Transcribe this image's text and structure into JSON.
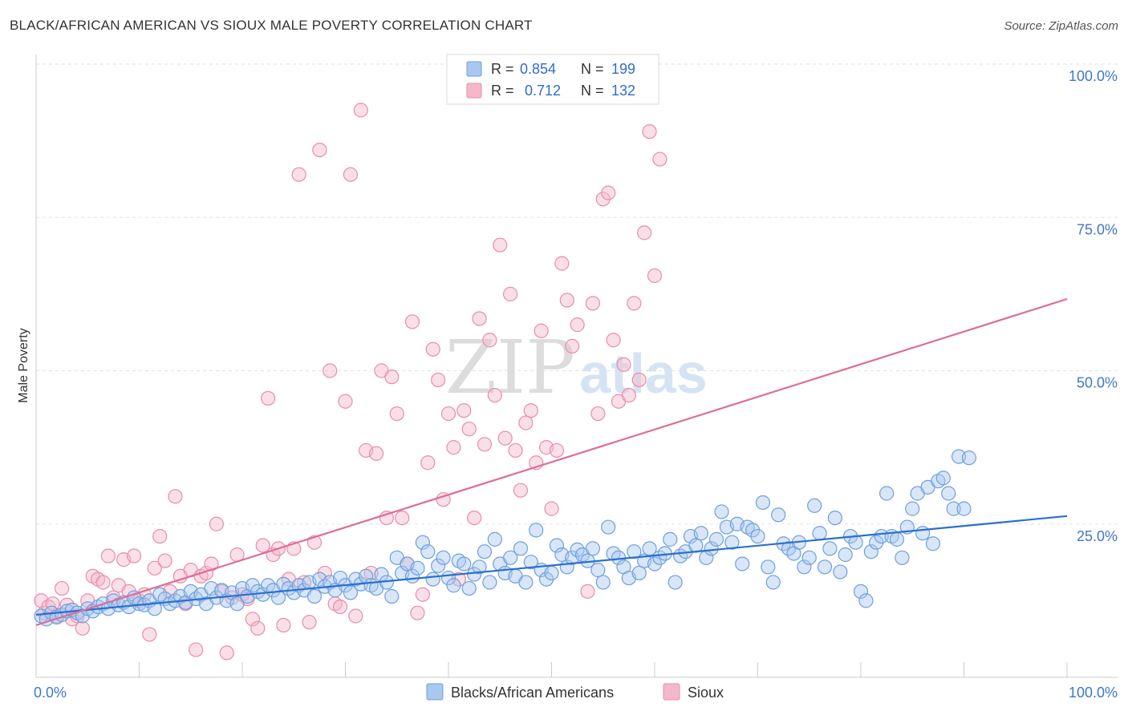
{
  "header": {
    "title": "BLACK/AFRICAN AMERICAN VS SIOUX MALE POVERTY CORRELATION CHART",
    "source": "Source: ZipAtlas.com"
  },
  "watermark": {
    "zip": "ZIP",
    "atlas": "atlas"
  },
  "colors": {
    "blue_fill": "#a9c8ef",
    "blue_stroke": "#6e9fdc",
    "blue_line": "#2a6fcf",
    "pink_fill": "#f5b8cb",
    "pink_stroke": "#e98daa",
    "pink_line": "#e06c95",
    "axis_label": "#3f78c8",
    "grid": "#e2e2e2"
  },
  "legend": {
    "rows": [
      {
        "r_label": "R =",
        "r_value": "0.854",
        "n_label": "N =",
        "n_value": "199"
      },
      {
        "r_label": "R =",
        "r_value": "0.712",
        "n_label": "N =",
        "n_value": "132"
      }
    ]
  },
  "chart_data": {
    "type": "scatter",
    "ylabel": "Male Poverty",
    "x_tick_labels": [
      "0.0%",
      "100.0%"
    ],
    "y_tick_labels": [
      "25.0%",
      "50.0%",
      "75.0%",
      "100.0%"
    ],
    "xlim": [
      0,
      100
    ],
    "ylim": [
      0,
      100
    ],
    "grid": true,
    "series": [
      {
        "name": "Blacks/African Americans",
        "r": 0.854,
        "n": 199,
        "trend": {
          "x": [
            0,
            100
          ],
          "y": [
            10.2,
            26.3
          ]
        },
        "points": [
          [
            0.5,
            10
          ],
          [
            1,
            9.5
          ],
          [
            1.5,
            10.5
          ],
          [
            2,
            9.8
          ],
          [
            2.5,
            10.2
          ],
          [
            3,
            10.8
          ],
          [
            3.5,
            11
          ],
          [
            4,
            10.5
          ],
          [
            4.5,
            10
          ],
          [
            5,
            11.2
          ],
          [
            5.5,
            10.8
          ],
          [
            6,
            11.5
          ],
          [
            6.5,
            12
          ],
          [
            7,
            11.2
          ],
          [
            7.5,
            12.5
          ],
          [
            8,
            11.8
          ],
          [
            8.5,
            12.2
          ],
          [
            9,
            11.5
          ],
          [
            9.5,
            13
          ],
          [
            10,
            12
          ],
          [
            10.5,
            11.8
          ],
          [
            11,
            12.5
          ],
          [
            11.5,
            11.2
          ],
          [
            12,
            13.5
          ],
          [
            12.5,
            12.8
          ],
          [
            13,
            12
          ],
          [
            13.5,
            12.5
          ],
          [
            14,
            13.2
          ],
          [
            14.5,
            12.2
          ],
          [
            15,
            14
          ],
          [
            15.5,
            12.8
          ],
          [
            16,
            13.5
          ],
          [
            16.5,
            12
          ],
          [
            17,
            14.5
          ],
          [
            17.5,
            13
          ],
          [
            18,
            14.2
          ],
          [
            18.5,
            12.5
          ],
          [
            19,
            13.8
          ],
          [
            19.5,
            12
          ],
          [
            20,
            14.5
          ],
          [
            20.5,
            13.2
          ],
          [
            21,
            15
          ],
          [
            21.5,
            14
          ],
          [
            22,
            13.5
          ],
          [
            22.5,
            15
          ],
          [
            23,
            14.2
          ],
          [
            23.5,
            13
          ],
          [
            24,
            15.2
          ],
          [
            24.5,
            14.5
          ],
          [
            25,
            13.8
          ],
          [
            25.5,
            15
          ],
          [
            26,
            14.2
          ],
          [
            26.5,
            15.5
          ],
          [
            27,
            13.2
          ],
          [
            27.5,
            16
          ],
          [
            28,
            14.8
          ],
          [
            28.5,
            15.5
          ],
          [
            29,
            14.2
          ],
          [
            29.5,
            16.2
          ],
          [
            30,
            15
          ],
          [
            30.5,
            13.8
          ],
          [
            31,
            16
          ],
          [
            31.5,
            15.2
          ],
          [
            32,
            16.5
          ],
          [
            32.5,
            15
          ],
          [
            33,
            14.5
          ],
          [
            33.5,
            16.8
          ],
          [
            34,
            15.5
          ],
          [
            34.5,
            13.2
          ],
          [
            35,
            19.5
          ],
          [
            35.5,
            17
          ],
          [
            36,
            18.5
          ],
          [
            36.5,
            16.5
          ],
          [
            37,
            17.8
          ],
          [
            37.5,
            22
          ],
          [
            38,
            20.5
          ],
          [
            38.5,
            16
          ],
          [
            39,
            18.2
          ],
          [
            39.5,
            19.5
          ],
          [
            40,
            16.2
          ],
          [
            40.5,
            15
          ],
          [
            41,
            19
          ],
          [
            41.5,
            18.5
          ],
          [
            42,
            14.5
          ],
          [
            42.5,
            16.8
          ],
          [
            43,
            18
          ],
          [
            43.5,
            20.5
          ],
          [
            44,
            15.5
          ],
          [
            44.5,
            22.5
          ],
          [
            45,
            18.5
          ],
          [
            45.5,
            17
          ],
          [
            46,
            19.5
          ],
          [
            46.5,
            16.5
          ],
          [
            47,
            21
          ],
          [
            47.5,
            15.5
          ],
          [
            48,
            18.8
          ],
          [
            48.5,
            24
          ],
          [
            49,
            17.5
          ],
          [
            49.5,
            16
          ],
          [
            50,
            17
          ],
          [
            50.5,
            21.5
          ],
          [
            51,
            20
          ],
          [
            51.5,
            18
          ],
          [
            52,
            19.5
          ],
          [
            52.5,
            20.8
          ],
          [
            53,
            20
          ],
          [
            53.5,
            19
          ],
          [
            54,
            21
          ],
          [
            54.5,
            17.5
          ],
          [
            55,
            15.5
          ],
          [
            55.5,
            24.5
          ],
          [
            56,
            20.2
          ],
          [
            56.5,
            19.5
          ],
          [
            57,
            18
          ],
          [
            57.5,
            16.2
          ],
          [
            58,
            20.5
          ],
          [
            58.5,
            17
          ],
          [
            59,
            19
          ],
          [
            59.5,
            21
          ],
          [
            60,
            18.5
          ],
          [
            60.5,
            19.5
          ],
          [
            61,
            20.2
          ],
          [
            61.5,
            22.5
          ],
          [
            62,
            15.5
          ],
          [
            62.5,
            19.8
          ],
          [
            63,
            20.5
          ],
          [
            63.5,
            23
          ],
          [
            64,
            21.5
          ],
          [
            64.5,
            23.5
          ],
          [
            65,
            19.5
          ],
          [
            65.5,
            21
          ],
          [
            66,
            22.5
          ],
          [
            66.5,
            27
          ],
          [
            67,
            24.5
          ],
          [
            67.5,
            22
          ],
          [
            68,
            25
          ],
          [
            68.5,
            18.5
          ],
          [
            69,
            24.5
          ],
          [
            69.5,
            24
          ],
          [
            70,
            23
          ],
          [
            70.5,
            28.5
          ],
          [
            71,
            18
          ],
          [
            71.5,
            15.5
          ],
          [
            72,
            26.5
          ],
          [
            72.5,
            21.8
          ],
          [
            73,
            21
          ],
          [
            73.5,
            20.2
          ],
          [
            74,
            22
          ],
          [
            74.5,
            18
          ],
          [
            75,
            19.5
          ],
          [
            75.5,
            28
          ],
          [
            76,
            23.5
          ],
          [
            76.5,
            18
          ],
          [
            77,
            21
          ],
          [
            77.5,
            26
          ],
          [
            78,
            17.2
          ],
          [
            78.5,
            20
          ],
          [
            79,
            23
          ],
          [
            79.5,
            22
          ],
          [
            80,
            14
          ],
          [
            80.5,
            12.5
          ],
          [
            81,
            20.5
          ],
          [
            81.5,
            22
          ],
          [
            82,
            23
          ],
          [
            82.5,
            30
          ],
          [
            83,
            23
          ],
          [
            83.5,
            22.5
          ],
          [
            84,
            19.5
          ],
          [
            84.5,
            24.5
          ],
          [
            85,
            27.5
          ],
          [
            85.5,
            30
          ],
          [
            86,
            23.5
          ],
          [
            86.5,
            31
          ],
          [
            87,
            21.8
          ],
          [
            87.5,
            32
          ],
          [
            88,
            32.5
          ],
          [
            88.5,
            30
          ],
          [
            89,
            27.5
          ],
          [
            89.5,
            36
          ],
          [
            90,
            27.5
          ],
          [
            90.5,
            35.8
          ]
        ]
      },
      {
        "name": "Sioux",
        "r": 0.712,
        "n": 132,
        "trend": {
          "x": [
            0,
            100
          ],
          "y": [
            8.5,
            61.7
          ]
        },
        "points": [
          [
            0.5,
            12.5
          ],
          [
            0.8,
            10.5
          ],
          [
            1.2,
            11.5
          ],
          [
            1.6,
            12
          ],
          [
            2,
            10
          ],
          [
            2.5,
            14.5
          ],
          [
            3,
            11.8
          ],
          [
            3.5,
            9.5
          ],
          [
            4,
            10
          ],
          [
            4.5,
            8
          ],
          [
            5,
            12.5
          ],
          [
            5.5,
            16.5
          ],
          [
            6,
            16
          ],
          [
            6.5,
            15.5
          ],
          [
            7,
            19.8
          ],
          [
            7.5,
            13
          ],
          [
            8,
            15
          ],
          [
            8.5,
            19.2
          ],
          [
            9,
            14
          ],
          [
            9.5,
            19.8
          ],
          [
            10,
            12.5
          ],
          [
            10.5,
            13.5
          ],
          [
            11,
            7
          ],
          [
            11.5,
            17.8
          ],
          [
            12,
            23
          ],
          [
            12.5,
            19
          ],
          [
            13,
            14
          ],
          [
            13.5,
            29.5
          ],
          [
            14,
            16.5
          ],
          [
            14.5,
            12
          ],
          [
            15,
            17.5
          ],
          [
            15.5,
            4.5
          ],
          [
            16,
            16.5
          ],
          [
            16.5,
            17
          ],
          [
            17,
            18.5
          ],
          [
            17.5,
            25
          ],
          [
            18,
            14
          ],
          [
            18.5,
            4
          ],
          [
            19,
            13
          ],
          [
            19.5,
            20
          ],
          [
            20,
            13.5
          ],
          [
            20.5,
            12.8
          ],
          [
            21,
            9.5
          ],
          [
            21.5,
            8
          ],
          [
            22,
            21.5
          ],
          [
            22.5,
            45.5
          ],
          [
            23,
            20
          ],
          [
            23.5,
            21
          ],
          [
            24,
            8.5
          ],
          [
            24.5,
            16
          ],
          [
            25,
            21
          ],
          [
            25.5,
            82
          ],
          [
            26,
            15.5
          ],
          [
            26.5,
            9
          ],
          [
            27,
            22
          ],
          [
            27.5,
            86
          ],
          [
            28,
            17
          ],
          [
            28.5,
            50
          ],
          [
            29,
            12
          ],
          [
            29.5,
            11.5
          ],
          [
            30,
            45
          ],
          [
            30.5,
            82
          ],
          [
            31,
            10
          ],
          [
            31.5,
            92.5
          ],
          [
            32,
            37
          ],
          [
            32.5,
            17
          ],
          [
            33,
            36.5
          ],
          [
            33.5,
            50
          ],
          [
            34,
            26
          ],
          [
            34.5,
            49
          ],
          [
            35,
            43
          ],
          [
            35.5,
            26
          ],
          [
            36,
            18.5
          ],
          [
            36.5,
            58
          ],
          [
            37,
            10.5
          ],
          [
            37.5,
            13.5
          ],
          [
            38,
            35
          ],
          [
            38.5,
            53.5
          ],
          [
            39,
            48.5
          ],
          [
            39.5,
            29
          ],
          [
            40,
            43
          ],
          [
            40.5,
            37.5
          ],
          [
            41,
            16
          ],
          [
            41.5,
            43.5
          ],
          [
            42,
            40.5
          ],
          [
            42.5,
            26
          ],
          [
            43,
            58.5
          ],
          [
            43.5,
            38
          ],
          [
            44,
            55
          ],
          [
            44.5,
            46
          ],
          [
            45,
            70.5
          ],
          [
            45.5,
            39
          ],
          [
            46,
            62.5
          ],
          [
            46.5,
            37
          ],
          [
            47,
            30.5
          ],
          [
            47.5,
            41.5
          ],
          [
            48,
            43.5
          ],
          [
            48.5,
            35
          ],
          [
            49,
            56.5
          ],
          [
            49.5,
            37.5
          ],
          [
            50,
            27.5
          ],
          [
            50.5,
            37
          ],
          [
            51,
            67.5
          ],
          [
            51.5,
            61.5
          ],
          [
            52,
            54
          ],
          [
            52.5,
            57.5
          ],
          [
            53,
            95.5
          ],
          [
            53.5,
            14
          ],
          [
            54,
            61
          ],
          [
            54.5,
            43
          ],
          [
            55,
            78
          ],
          [
            55.5,
            79
          ],
          [
            56,
            55
          ],
          [
            56.5,
            45
          ],
          [
            57,
            51
          ],
          [
            57.5,
            46
          ],
          [
            58,
            61
          ],
          [
            58.5,
            48.5
          ],
          [
            59,
            72.5
          ],
          [
            59.5,
            89
          ],
          [
            60,
            65.5
          ],
          [
            60.5,
            84.5
          ]
        ]
      }
    ]
  }
}
